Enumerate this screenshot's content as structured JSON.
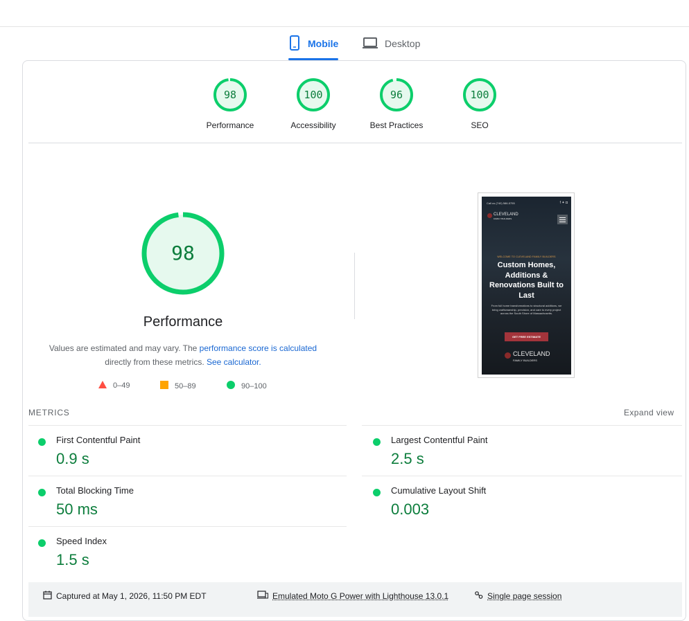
{
  "tabs": [
    {
      "label": "Mobile",
      "icon": "smartphone-icon",
      "active": true
    },
    {
      "label": "Desktop",
      "icon": "laptop-icon",
      "active": false
    }
  ],
  "categories": [
    {
      "label": "Performance",
      "score": 98
    },
    {
      "label": "Accessibility",
      "score": 100
    },
    {
      "label": "Best Practices",
      "score": 96
    },
    {
      "label": "SEO",
      "score": 100
    }
  ],
  "performance": {
    "score": 98,
    "title": "Performance",
    "desc_prefix": "Values are estimated and may vary. The ",
    "desc_link1": "performance score is calculated",
    "desc_middle": "directly from these metrics. ",
    "desc_link2": "See calculator."
  },
  "legend": [
    {
      "range": "0–49",
      "shape": "triangle",
      "color": "#ff4e42"
    },
    {
      "range": "50–89",
      "shape": "square",
      "color": "#ffa400"
    },
    {
      "range": "90–100",
      "shape": "circle",
      "color": "#0cce6b"
    }
  ],
  "thumbnail": {
    "phone": "Call us (740) 586-5755",
    "logo_line1": "CLEVELAND",
    "logo_line2": "FAMILY BUILDERS",
    "kicker": "WELCOME TO CLEVELAND FAMILY BUILDERS",
    "headline": "Custom Homes, Additions & Renovations Built to Last",
    "body": "From full home transformations to structural additions, we bring craftsmanship, precision, and care to every project across the South Shore of Massachusetts.",
    "cta": "GET FREE ESTIMATE"
  },
  "metrics_section": {
    "heading": "METRICS",
    "expand": "Expand view",
    "items": [
      {
        "name": "First Contentful Paint",
        "value": "0.9 s"
      },
      {
        "name": "Largest Contentful Paint",
        "value": "2.5 s"
      },
      {
        "name": "Total Blocking Time",
        "value": "50 ms"
      },
      {
        "name": "Cumulative Layout Shift",
        "value": "0.003"
      },
      {
        "name": "Speed Index",
        "value": "1.5 s"
      }
    ]
  },
  "footer": {
    "captured": "Captured at May 1, 2026, 11:50 PM EDT",
    "emulated": "Emulated Moto G Power with Lighthouse 13.0.1",
    "session": "Single page session"
  },
  "colors": {
    "pass": "#0cce6b",
    "pass_text": "#0c7d3c",
    "accent": "#1a73e8",
    "link": "#1967d2"
  }
}
